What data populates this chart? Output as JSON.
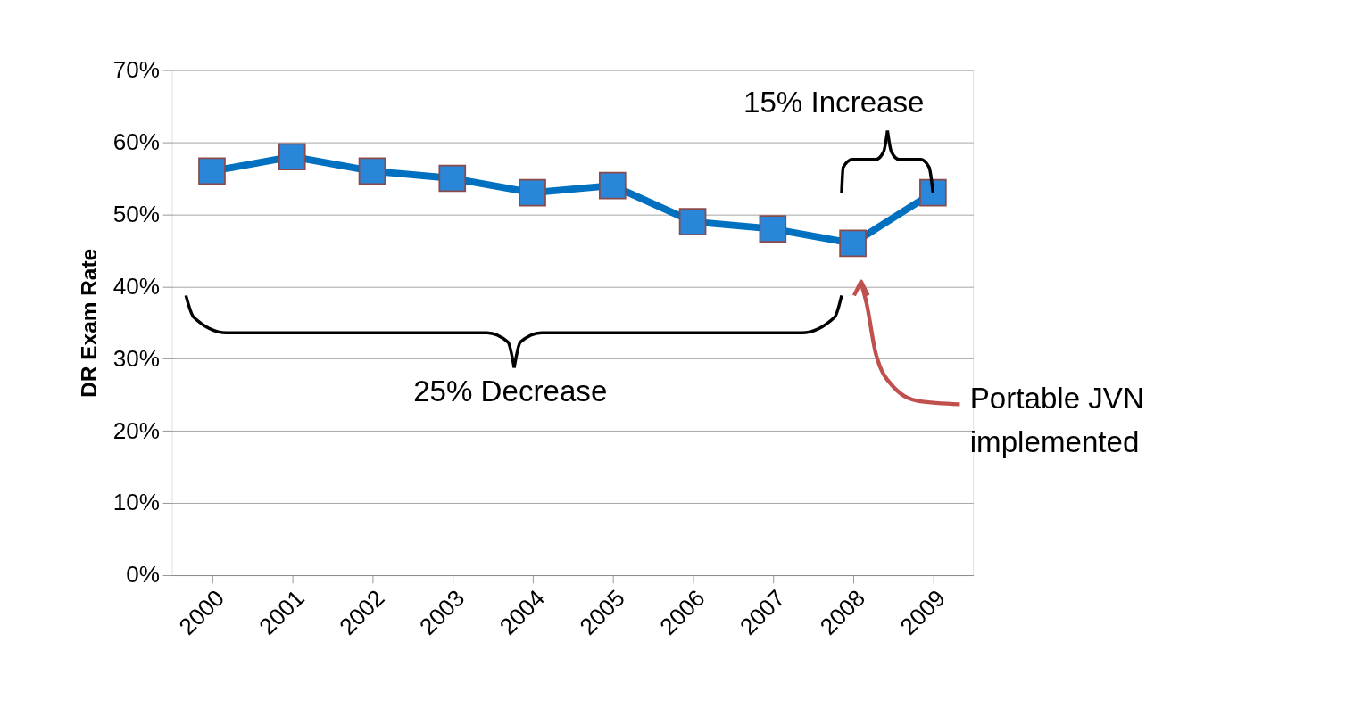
{
  "chart_data": {
    "type": "line",
    "ylabel": "DR Exam Rate",
    "categories": [
      "2000",
      "2001",
      "2002",
      "2003",
      "2004",
      "2005",
      "2006",
      "2007",
      "2008",
      "2009"
    ],
    "series": [
      {
        "color": "#0070c0",
        "values": [
          56,
          58,
          56,
          55,
          53,
          54,
          49,
          48,
          46,
          53
        ]
      }
    ],
    "ylim": [
      0,
      70
    ],
    "yticks": [
      {
        "value": 0,
        "label": "0%"
      },
      {
        "value": 10,
        "label": "10%"
      },
      {
        "value": 20,
        "label": "20%"
      },
      {
        "value": 30,
        "label": "30%"
      },
      {
        "value": 40,
        "label": "40%"
      },
      {
        "value": 50,
        "label": "50%"
      },
      {
        "value": 60,
        "label": "60%"
      },
      {
        "value": 70,
        "label": "70%"
      }
    ],
    "grid": "y",
    "marker": "square",
    "line_style": "solid",
    "annotations": [
      "25% Decrease",
      {
        "text": "15% Increase",
        "x": "2009",
        "y": 53
      },
      "Portable JVN\nimplemented"
    ]
  }
}
